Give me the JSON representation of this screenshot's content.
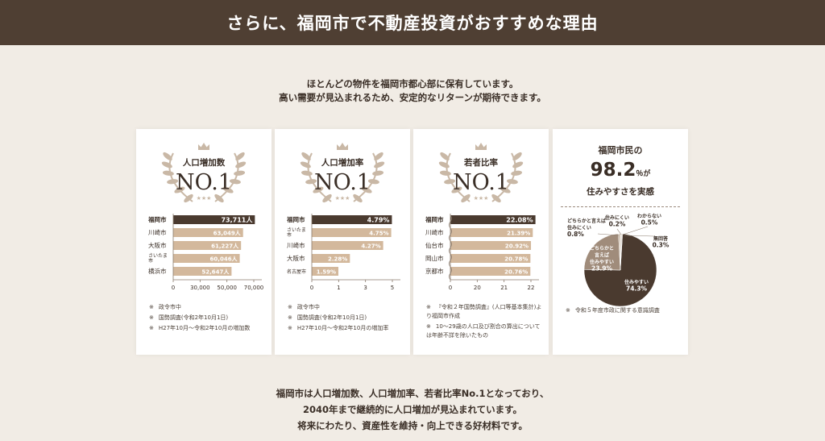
{
  "header": {
    "title": "さらに、福岡市で不動産投資がおすすめな理由"
  },
  "intro": {
    "line1": "ほとんどの物件を福岡市都心部に保有しています。",
    "line2": "高い需要が見込まれるため、安定的なリターンが期待できます。"
  },
  "colors": {
    "header_bg": "#4f3f33",
    "highlight_bar": "#4a3a2f",
    "bar": "#d3b89c",
    "page_bg": "#f1ece5",
    "laurel": "#c9b8a6"
  },
  "chart_data": [
    {
      "type": "bar",
      "orientation": "horizontal",
      "badge_title": "人口増加数",
      "badge_rank": "NO.1",
      "categories": [
        "福岡市",
        "川崎市",
        "大阪市",
        "さいたま市",
        "横浜市"
      ],
      "values": [
        73711,
        63049,
        61227,
        60046,
        52647
      ],
      "value_labels": [
        "73,711人",
        "63,049人",
        "61,227人",
        "60,046人",
        "52,647人"
      ],
      "highlight_index": 0,
      "xlim": [
        0,
        80000
      ],
      "xticks": [
        "0",
        "30,000",
        "50,000",
        "70,000"
      ],
      "notes": [
        "政令市中",
        "国勢調査(令和2年10月1日)",
        "H27年10月～令和2年10月の増加数"
      ]
    },
    {
      "type": "bar",
      "orientation": "horizontal",
      "badge_title": "人口増加率",
      "badge_rank": "NO.1",
      "categories": [
        "福岡市",
        "さいたま市",
        "川崎市",
        "大阪市",
        "名古屋市"
      ],
      "values": [
        4.79,
        4.75,
        4.27,
        2.28,
        1.59
      ],
      "value_labels": [
        "4.79%",
        "4.75%",
        "4.27%",
        "2.28%",
        "1.59%"
      ],
      "highlight_index": 0,
      "xlim": [
        0,
        5.3
      ],
      "xticks": [
        "0",
        "1",
        "3",
        "5"
      ],
      "notes": [
        "政令市中",
        "国勢調査(令和2年10月1日)",
        "H27年10月～令和2年10月の増加率"
      ]
    },
    {
      "type": "bar",
      "orientation": "horizontal",
      "badge_title": "若者比率",
      "badge_rank": "NO.1",
      "categories": [
        "福岡市",
        "川崎市",
        "仙台市",
        "岡山市",
        "京都市"
      ],
      "values": [
        22.08,
        21.39,
        20.92,
        20.78,
        20.76
      ],
      "value_labels": [
        "22.08%",
        "21.39%",
        "20.92%",
        "20.78%",
        "20.76%"
      ],
      "highlight_index": 0,
      "xlim": [
        0,
        23
      ],
      "xticks": [
        "0",
        "20",
        "21",
        "22"
      ],
      "axis_break": true,
      "notes": [
        "『令和２年国勢調査』(人口等基本集計)より福岡市作成",
        "10～29歳の人口及び割合の算出については年齢不詳を除いたもの"
      ]
    },
    {
      "type": "pie",
      "head_line1": "福岡市民の",
      "head_value": "98.2",
      "head_unit": "％が",
      "head_line3": "住みやすさを実感",
      "slices": [
        {
          "name": "住みやすい",
          "value": 74.3,
          "label": "74.3%"
        },
        {
          "name": "どちらかと言えば住みやすい",
          "value": 23.9,
          "label": "23.9%"
        },
        {
          "name": "どちらかと言えば住みにくい",
          "value": 0.8,
          "label": "0.8%"
        },
        {
          "name": "住みにくい",
          "value": 0.2,
          "label": "0.2%"
        },
        {
          "name": "わからない",
          "value": 0.5,
          "label": "0.5%"
        },
        {
          "name": "無回答",
          "value": 0.3,
          "label": "0.3%"
        }
      ],
      "notes": [
        "令和５年度市政に関する意識調査"
      ]
    }
  ],
  "footer": {
    "line1": "福岡市は人口増加数、人口増加率、若者比率No.1となっており、",
    "line2": "2040年まで継続的に人口増加が見込まれています。",
    "line3": "将来にわたり、資産性を維持・向上できる好材料です。"
  }
}
